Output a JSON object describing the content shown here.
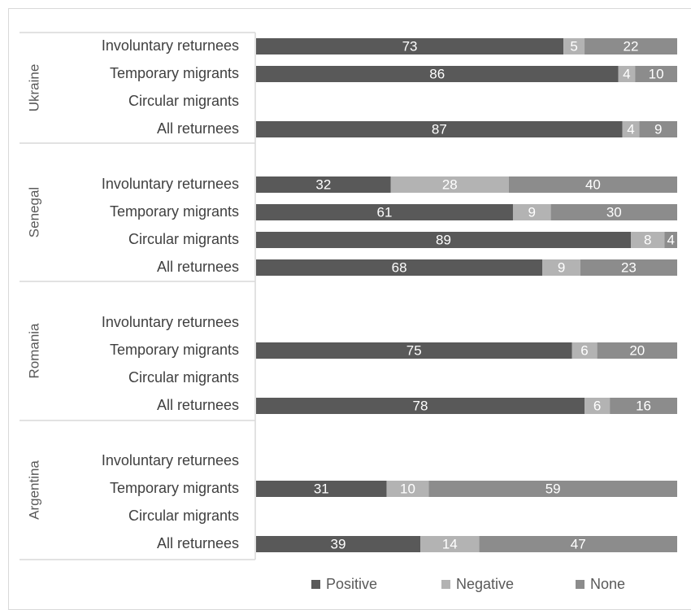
{
  "chart_data": {
    "type": "bar",
    "orientation": "horizontal",
    "stacked": true,
    "xlim": [
      0,
      100
    ],
    "colors": {
      "Positive": "#595959",
      "Negative": "#b3b3b3",
      "None": "#8c8c8c"
    },
    "legend_position": "bottom",
    "groups": [
      {
        "name": "Ukraine",
        "rows": [
          {
            "label": "Involuntary returnees",
            "values": [
              73,
              5,
              22
            ]
          },
          {
            "label": "Temporary migrants",
            "values": [
              86,
              4,
              10
            ]
          },
          {
            "label": "Circular migrants",
            "values": null
          },
          {
            "label": "All returnees",
            "values": [
              87,
              4,
              9
            ]
          }
        ]
      },
      {
        "name": "Senegal",
        "rows": [
          {
            "label": "Involuntary returnees",
            "values": [
              32,
              28,
              40
            ]
          },
          {
            "label": "Temporary migrants",
            "values": [
              61,
              9,
              30
            ]
          },
          {
            "label": "Circular migrants",
            "values": [
              89,
              8,
              4
            ]
          },
          {
            "label": "All returnees",
            "values": [
              68,
              9,
              23
            ]
          }
        ]
      },
      {
        "name": "Romania",
        "rows": [
          {
            "label": "Involuntary returnees",
            "values": null
          },
          {
            "label": "Temporary migrants",
            "values": [
              75,
              6,
              20
            ]
          },
          {
            "label": "Circular migrants",
            "values": null
          },
          {
            "label": "All returnees",
            "values": [
              78,
              6,
              16
            ]
          }
        ]
      },
      {
        "name": "Argentina",
        "rows": [
          {
            "label": "Involuntary returnees",
            "values": null
          },
          {
            "label": "Temporary migrants",
            "values": [
              31,
              10,
              59
            ]
          },
          {
            "label": "Circular migrants",
            "values": null
          },
          {
            "label": "All returnees",
            "values": [
              39,
              14,
              47
            ]
          }
        ]
      }
    ],
    "series": [
      {
        "name": "Positive"
      },
      {
        "name": "Negative"
      },
      {
        "name": "None"
      }
    ]
  }
}
